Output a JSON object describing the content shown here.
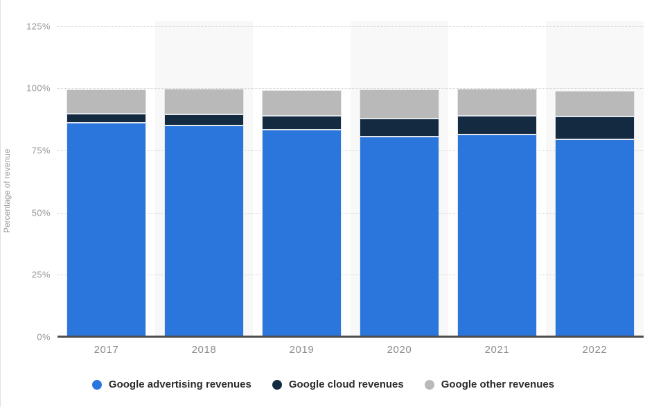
{
  "chart_data": {
    "type": "bar",
    "stacked": true,
    "title": "",
    "xlabel": "",
    "ylabel": "Percentage of revenue",
    "categories": [
      "2017",
      "2018",
      "2019",
      "2020",
      "2021",
      "2022"
    ],
    "series": [
      {
        "name": "Google advertising revenues",
        "color": "#2b76dd",
        "values": [
          86.0,
          85.1,
          83.3,
          80.5,
          81.3,
          79.4
        ]
      },
      {
        "name": "Google cloud revenues",
        "color": "#132a40",
        "values": [
          3.7,
          4.3,
          5.5,
          7.2,
          7.5,
          9.3
        ]
      },
      {
        "name": "Google other revenues",
        "color": "#b9b9b9",
        "values": [
          9.8,
          10.3,
          10.5,
          11.9,
          10.9,
          10.3
        ]
      }
    ],
    "y_tick_values": [
      0,
      25,
      50,
      75,
      100,
      125
    ],
    "y_tick_labels": [
      "0%",
      "25%",
      "50%",
      "75%",
      "100%",
      "125%"
    ],
    "ylim": [
      0,
      125
    ],
    "unit": "%",
    "grid": "dotted-horizontal",
    "legend_position": "bottom",
    "plot_band_colors": [
      "#ffffff",
      "#f8f8f8"
    ],
    "axis_line_color": "#4d4d4d"
  }
}
